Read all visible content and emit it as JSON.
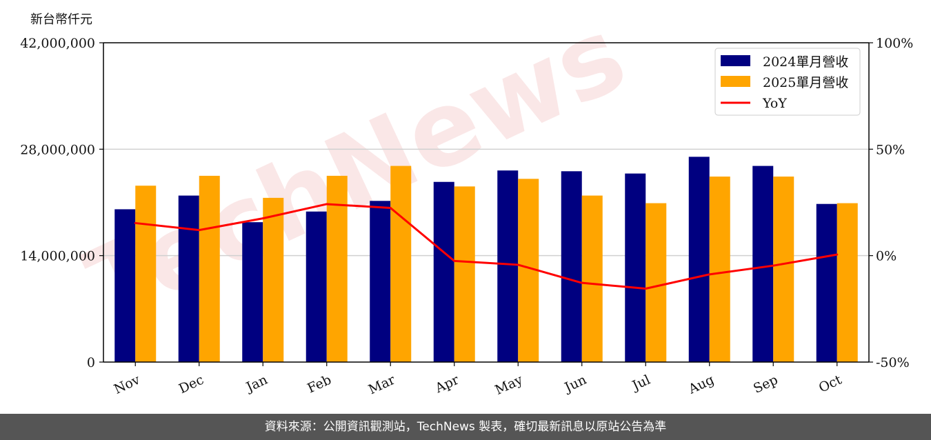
{
  "unit_label": "新台幣仟元",
  "footer": "資料來源：公開資訊觀測站，TechNews 製表，確切最新訊息以原站公告為準",
  "watermark": "TechNews",
  "colors": {
    "series2024": "#000080",
    "series2025": "#FFA500",
    "yoy": "#FF0000",
    "grid": "#d0d0d0"
  },
  "chart_data": {
    "type": "bar",
    "categories": [
      "Nov",
      "Dec",
      "Jan",
      "Feb",
      "Mar",
      "Apr",
      "May",
      "Jun",
      "Jul",
      "Aug",
      "Sep",
      "Oct"
    ],
    "series": [
      {
        "name": "2024單月營收",
        "values": [
          20100000,
          21900000,
          18400000,
          19800000,
          21200000,
          23700000,
          25200000,
          25100000,
          24800000,
          27000000,
          25800000,
          20800000
        ]
      },
      {
        "name": "2025單月營收",
        "values": [
          23200000,
          24500000,
          21600000,
          24500000,
          25800000,
          23100000,
          24100000,
          21900000,
          20900000,
          24400000,
          24400000,
          20900000
        ]
      }
    ],
    "line_series": {
      "name": "YoY",
      "axis": "right",
      "values": [
        15.3,
        12.0,
        17.5,
        24.2,
        22.4,
        -2.5,
        -4.3,
        -12.8,
        -15.5,
        -8.8,
        -4.7,
        0.5
      ]
    },
    "y_left": {
      "ylim": [
        0,
        42000000
      ],
      "ticks": [
        "0",
        "14,000,000",
        "28,000,000",
        "42,000,000"
      ],
      "tick_values": [
        0,
        14000000,
        28000000,
        42000000
      ]
    },
    "y_right": {
      "ylim": [
        -50,
        100
      ],
      "ticks": [
        "-50%",
        "0%",
        "50%",
        "100%"
      ],
      "tick_values": [
        -50,
        0,
        50,
        100
      ]
    },
    "legend": {
      "placement": "top-right",
      "entries": [
        "2024單月營收",
        "2025單月營收",
        "YoY"
      ]
    },
    "grid": true
  }
}
